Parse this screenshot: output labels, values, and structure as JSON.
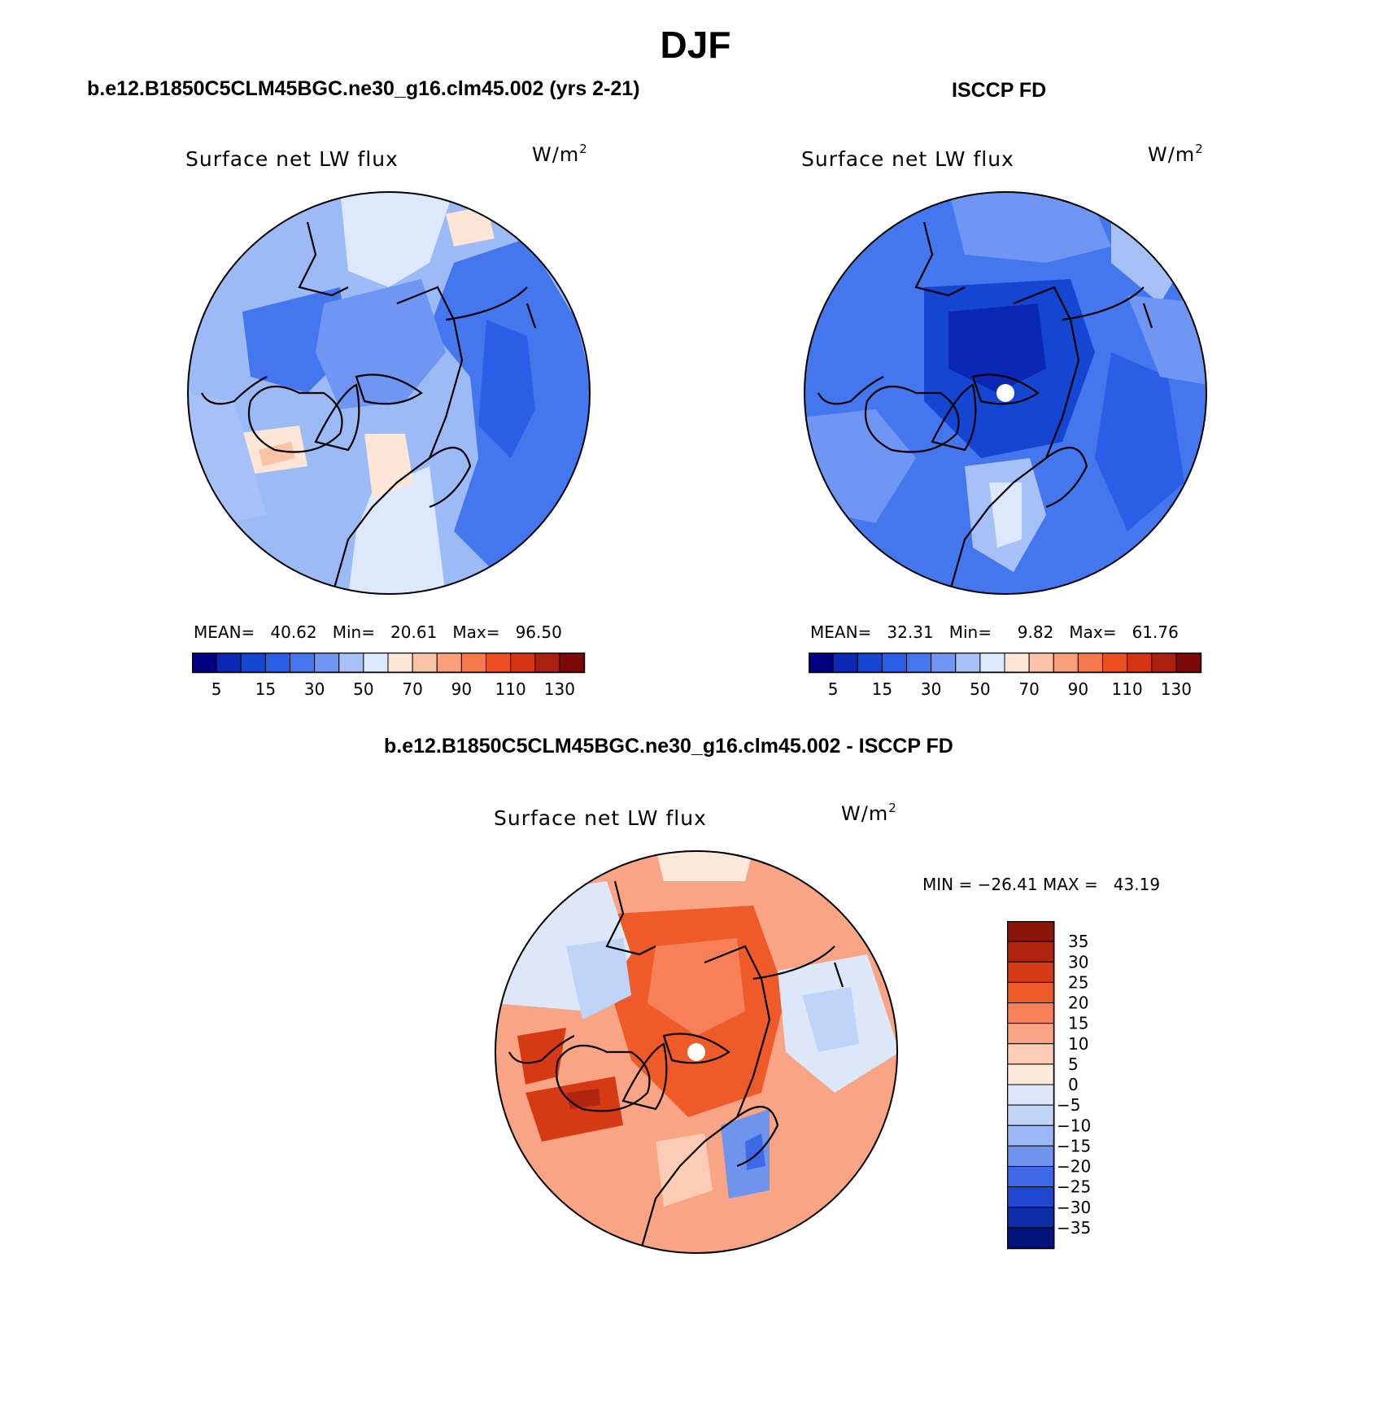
{
  "header": {
    "season": "DJF",
    "case_title": "b.e12.B1850C5CLM45BGC.ne30_g16.clm45.002 (yrs 2-21)",
    "obs_title": "ISCCP FD",
    "diff_title": "b.e12.B1850C5CLM45BGC.ne30_g16.clm45.002 - ISCCP FD"
  },
  "panels": {
    "model": {
      "variable": "Surface net LW flux",
      "units": "W/m",
      "units_power": "2",
      "stats": {
        "mean_label": "MEAN=",
        "mean": "40.62",
        "min_label": "Min=",
        "min": "20.61",
        "max_label": "Max=",
        "max": "96.50"
      }
    },
    "obs": {
      "variable": "Surface net LW flux",
      "units": "W/m",
      "units_power": "2",
      "stats": {
        "mean_label": "MEAN=",
        "mean": "32.31",
        "min_label": "Min=",
        "min": "9.82",
        "max_label": "Max=",
        "max": "61.76"
      }
    },
    "diff": {
      "variable": "Surface net LW flux",
      "units": "W/m",
      "units_power": "2",
      "stats_text": "MIN = −26.41 MAX =   43.19"
    }
  },
  "colorbars": {
    "abs": {
      "colors": [
        "#000080",
        "#0a28b4",
        "#1446d2",
        "#2a5ee6",
        "#4476ee",
        "#7096f4",
        "#a6c0f8",
        "#dce8fc",
        "#fde6d6",
        "#f9c4a6",
        "#f7a07a",
        "#f47a4c",
        "#ec5020",
        "#d43414",
        "#ac2010",
        "#7c0808"
      ],
      "tick_labels": [
        "5",
        "15",
        "30",
        "50",
        "70",
        "90",
        "110",
        "130"
      ]
    },
    "diff": {
      "colors": [
        "#8a1508",
        "#b02510",
        "#d63a14",
        "#ee5a28",
        "#f78058",
        "#f9a484",
        "#fcccb4",
        "#fde8da",
        "#dce8fa",
        "#c0d4f8",
        "#9ab8f4",
        "#6e94ee",
        "#3e68e6",
        "#2048d0",
        "#0c2ca8",
        "#00137a"
      ],
      "tick_labels": [
        "35",
        "30",
        "25",
        "20",
        "15",
        "10",
        "5",
        "0",
        "−5",
        "−10",
        "−15",
        "−20",
        "−25",
        "−30",
        "−35"
      ]
    }
  },
  "maps": {
    "model": {
      "base": "#9bbaf6",
      "regions": [
        "#dce8fc",
        "#4476ee",
        "#7096f4",
        "#2a5ee6",
        "#fde6d6",
        "#f9c4a6",
        "#f7a07a",
        "#a6c0f8"
      ]
    },
    "obs": {
      "base": "#4476ee",
      "regions": [
        "#7096f4",
        "#2a5ee6",
        "#1446d2",
        "#a6c0f8",
        "#dce8fc",
        "#0a28b4"
      ]
    },
    "diff": {
      "base": "#f9a484",
      "regions": [
        "#ee5a28",
        "#fcccb4",
        "#dce8fa",
        "#c0d4f8",
        "#f78058",
        "#d63a14",
        "#fde8da",
        "#6e94ee",
        "#3e68e6",
        "#b02510"
      ]
    }
  }
}
